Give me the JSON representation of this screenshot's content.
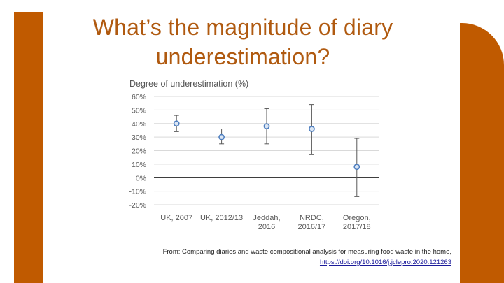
{
  "slide": {
    "title_line1": "What’s the magnitude of diary",
    "title_line2": "underestimation?",
    "accent_color": "#c05a00"
  },
  "caption": {
    "text": "From: Comparing diaries and waste compositional analysis for measuring food waste in the home,",
    "link": "https://doi.org/10.1016/j.jclepro.2020.121263"
  },
  "chart_data": {
    "type": "scatter",
    "title": "Degree of underestimation (%)",
    "categories": [
      [
        "UK, 2007"
      ],
      [
        "UK, 2012/13"
      ],
      [
        "Jeddah,",
        "2016"
      ],
      [
        "NRDC,",
        "2016/17"
      ],
      [
        "Oregon,",
        "2017/18"
      ]
    ],
    "series": [
      {
        "values": [
          40,
          30,
          38,
          36,
          8
        ],
        "lower": [
          34,
          25,
          25,
          17,
          -14
        ],
        "upper": [
          46,
          36,
          51,
          54,
          29
        ]
      }
    ],
    "ylim": [
      -20,
      60
    ],
    "yticks": [
      -20,
      -10,
      0,
      10,
      20,
      30,
      40,
      50,
      60
    ],
    "ytick_labels": [
      "-20%",
      "-10%",
      "0%",
      "10%",
      "20%",
      "30%",
      "40%",
      "50%",
      "60%"
    ],
    "grid": true,
    "zero_line": true,
    "marker_color": "#4f7fc0",
    "marker_fill": "#dbe6f4"
  }
}
